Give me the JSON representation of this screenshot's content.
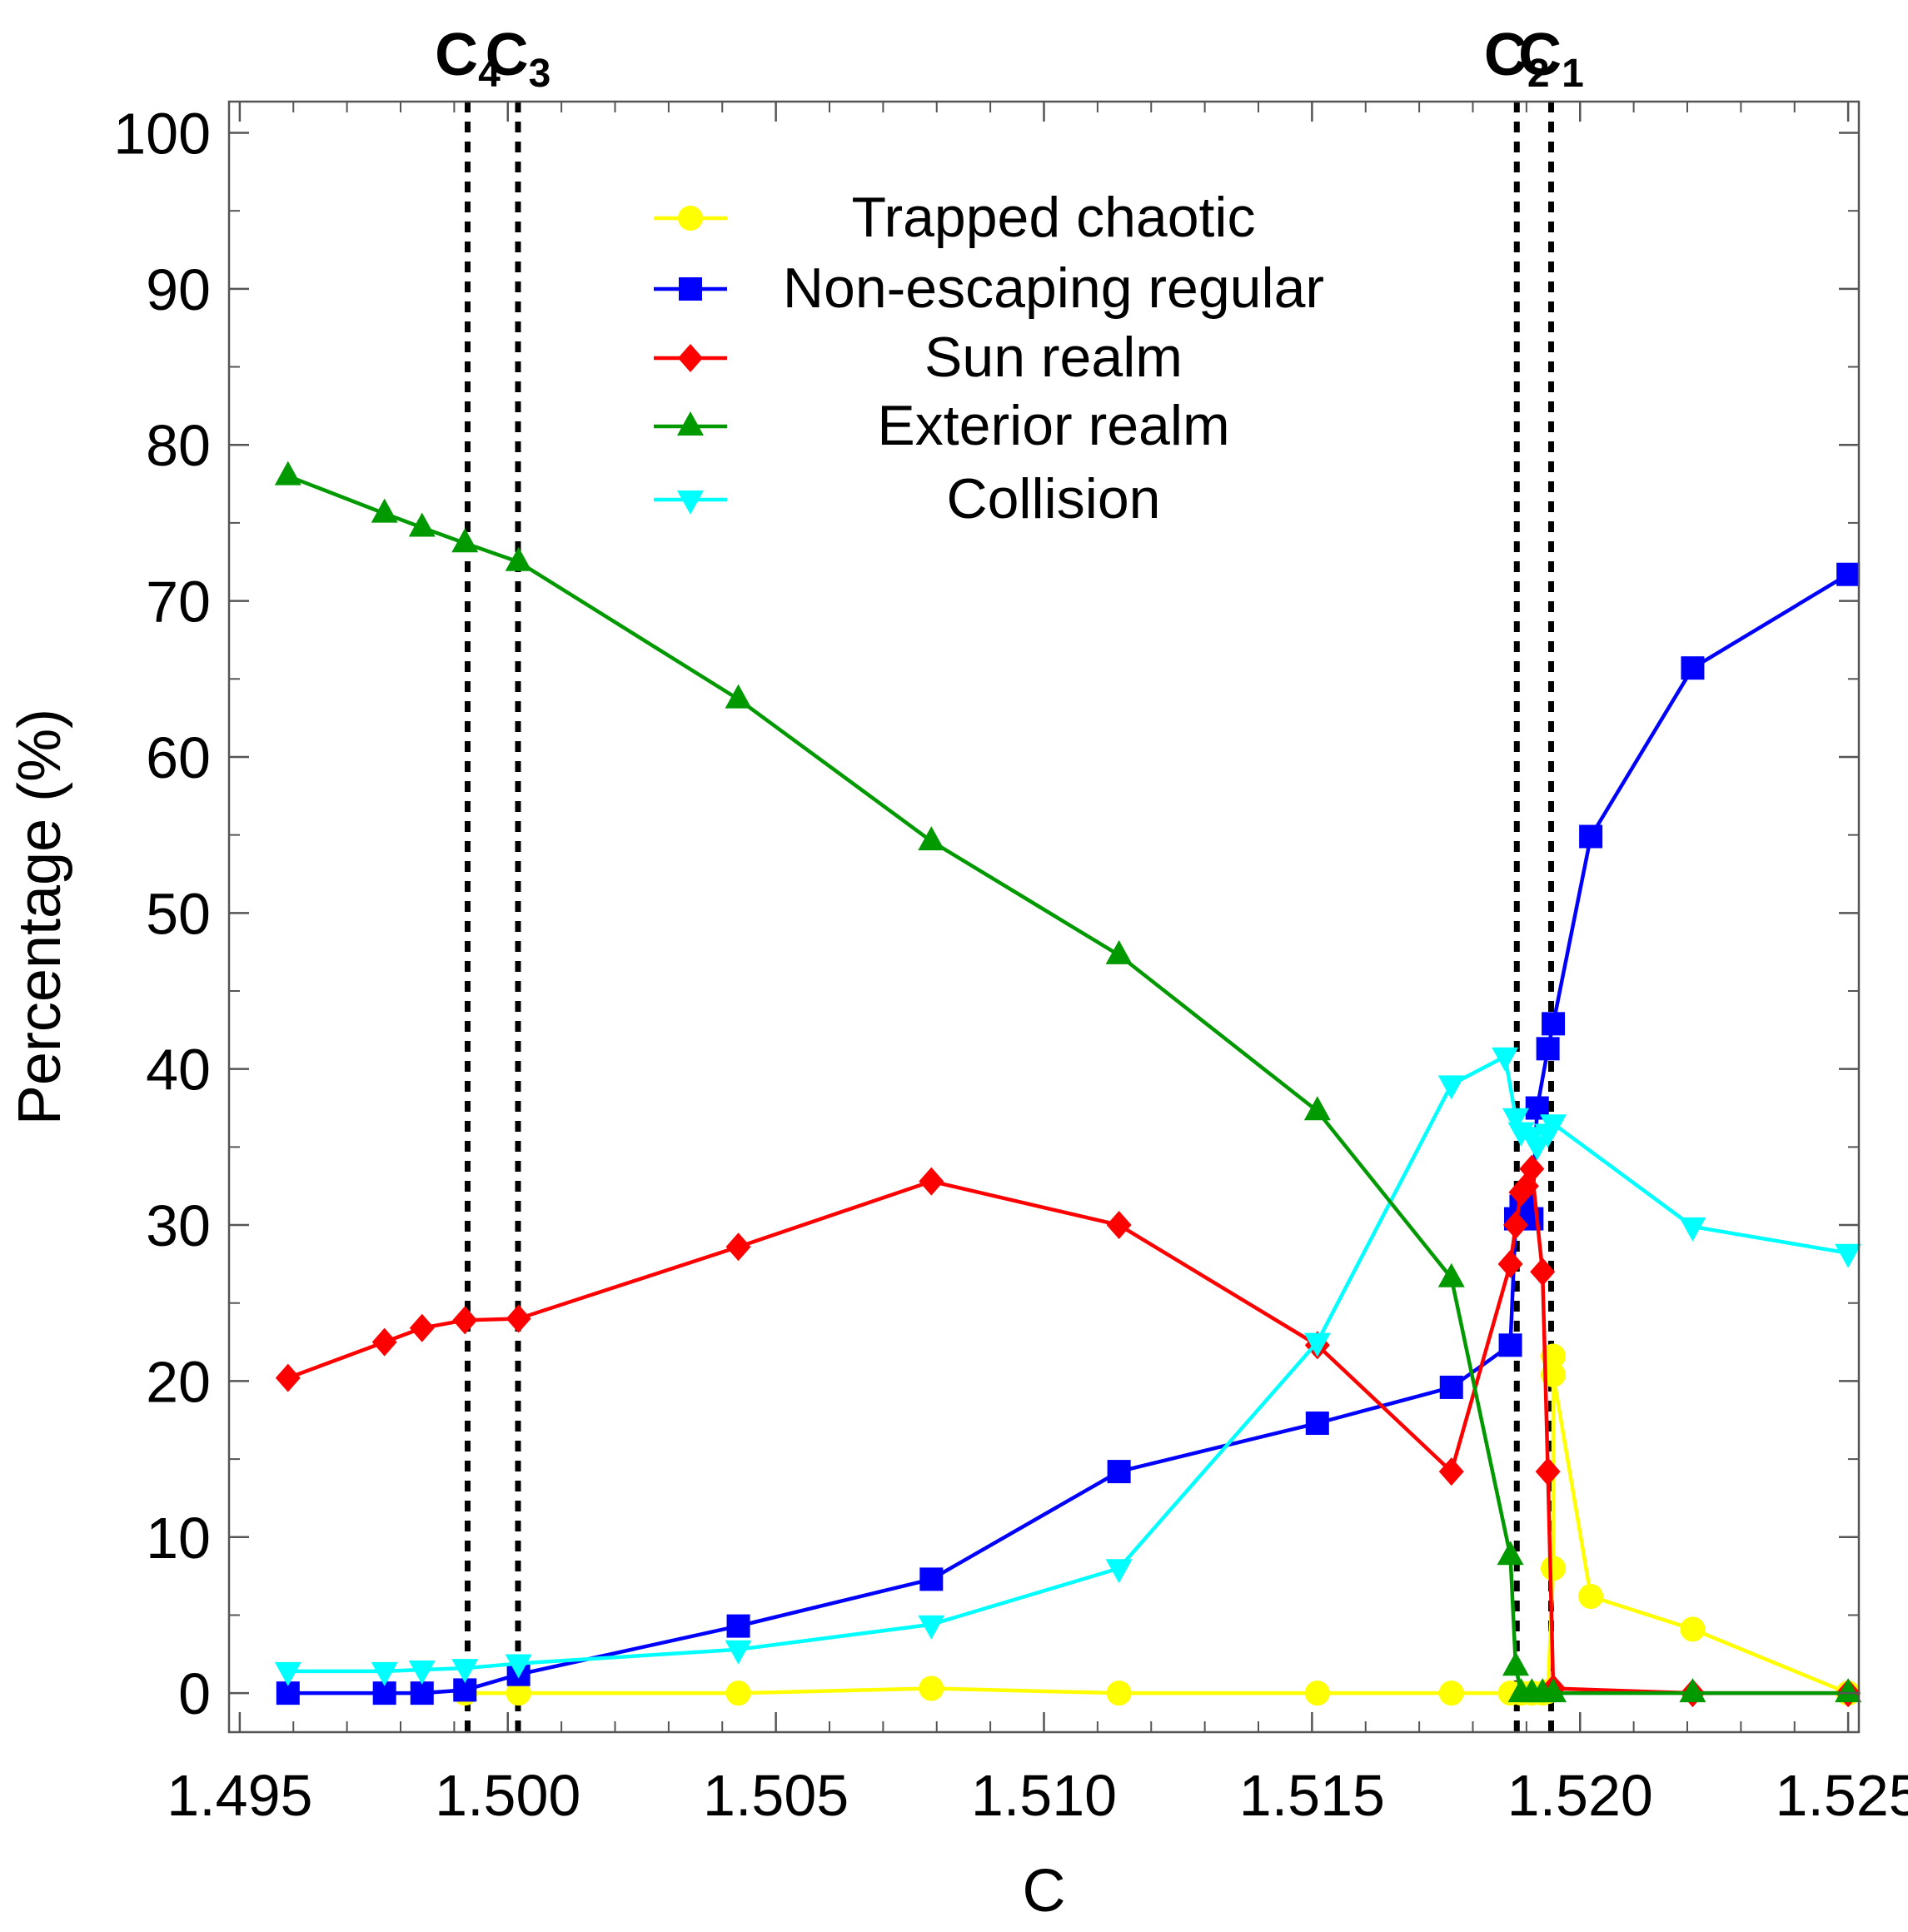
{
  "chart_data": {
    "type": "line",
    "xlabel": "C",
    "ylabel": "Percentage (%)",
    "xlim": [
      1.4948,
      1.5252
    ],
    "ylim": [
      -2.5,
      102.0
    ],
    "xticks": [
      1.495,
      1.5,
      1.505,
      1.51,
      1.515,
      1.52,
      1.525
    ],
    "xtick_labels": [
      "1.495",
      "1.500",
      "1.505",
      "1.510",
      "1.515",
      "1.520",
      "1.525"
    ],
    "yticks": [
      0,
      10,
      20,
      30,
      40,
      50,
      60,
      70,
      80,
      90,
      100
    ],
    "ytick_labels": [
      "0",
      "10",
      "20",
      "30",
      "40",
      "50",
      "60",
      "70",
      "80",
      "90",
      "100"
    ],
    "vertical_lines": [
      {
        "x": 1.49925,
        "label": "C",
        "sub": "4"
      },
      {
        "x": 1.50019,
        "label": "C",
        "sub": "3"
      },
      {
        "x": 1.51882,
        "label": "C",
        "sub": "2"
      },
      {
        "x": 1.51946,
        "label": "C",
        "sub": "1"
      }
    ],
    "series": [
      {
        "name": "Trapped chaotic",
        "color": "#ffff00",
        "marker": "circle",
        "x": [
          1.4992,
          1.5002,
          1.5043,
          1.5079,
          1.5114,
          1.5151,
          1.5176,
          1.5187,
          1.5189,
          1.5191,
          1.5193,
          1.5194,
          1.5195,
          1.5195,
          1.5195,
          1.5202,
          1.5221,
          1.525
        ],
        "y": [
          0,
          0,
          0,
          0.3,
          0,
          0,
          0,
          0,
          0,
          0,
          0,
          0.1,
          8.0,
          21.6,
          20.4,
          6.2,
          4.1,
          0
        ]
      },
      {
        "name": "Non-escaping regular",
        "color": "#0000ff",
        "marker": "square",
        "x": [
          1.4959,
          1.4977,
          1.4984,
          1.4992,
          1.5002,
          1.5043,
          1.5079,
          1.5114,
          1.5151,
          1.5176,
          1.5187,
          1.5188,
          1.5189,
          1.5191,
          1.5192,
          1.5194,
          1.5195,
          1.5202,
          1.5221,
          1.525
        ],
        "y": [
          0,
          0,
          0,
          0.2,
          1.2,
          4.3,
          7.3,
          14.2,
          17.3,
          19.6,
          22.3,
          30.4,
          31.2,
          30.4,
          37.5,
          41.3,
          42.9,
          54.9,
          65.7,
          71.7
        ]
      },
      {
        "name": "Sun realm",
        "color": "#ff0000",
        "marker": "diamond",
        "x": [
          1.4959,
          1.4977,
          1.4984,
          1.4992,
          1.5002,
          1.5043,
          1.5079,
          1.5114,
          1.5151,
          1.5176,
          1.5187,
          1.5188,
          1.5189,
          1.519,
          1.5191,
          1.5193,
          1.5194,
          1.5195,
          1.5221,
          1.525
        ],
        "y": [
          20.2,
          22.5,
          23.4,
          23.9,
          24.0,
          28.6,
          32.8,
          30.0,
          22.3,
          14.2,
          27.5,
          30.0,
          32.1,
          32.5,
          33.6,
          27.0,
          14.2,
          0.3,
          0,
          0
        ]
      },
      {
        "name": "Exterior realm",
        "color": "#009900",
        "marker": "triangle-up",
        "x": [
          1.4959,
          1.4977,
          1.4984,
          1.4992,
          1.5002,
          1.5043,
          1.5079,
          1.5114,
          1.5151,
          1.5176,
          1.5187,
          1.5188,
          1.5189,
          1.5191,
          1.5193,
          1.5195,
          1.5221,
          1.525
        ],
        "y": [
          78.0,
          75.6,
          74.7,
          73.7,
          72.5,
          63.7,
          54.6,
          47.3,
          37.3,
          26.6,
          8.8,
          1.7,
          0,
          0,
          0,
          0,
          0,
          0
        ]
      },
      {
        "name": "Collision",
        "color": "#00ffff",
        "marker": "triangle-down",
        "x": [
          1.4959,
          1.4977,
          1.4984,
          1.4992,
          1.5002,
          1.5043,
          1.5079,
          1.5114,
          1.5151,
          1.5176,
          1.5186,
          1.5188,
          1.5189,
          1.5191,
          1.5192,
          1.5194,
          1.5195,
          1.5221,
          1.525
        ],
        "y": [
          1.4,
          1.4,
          1.5,
          1.6,
          1.9,
          2.8,
          4.4,
          8.0,
          22.5,
          39.0,
          40.8,
          36.9,
          36.0,
          35.7,
          35.1,
          35.9,
          36.5,
          29.9,
          28.2
        ]
      }
    ]
  }
}
